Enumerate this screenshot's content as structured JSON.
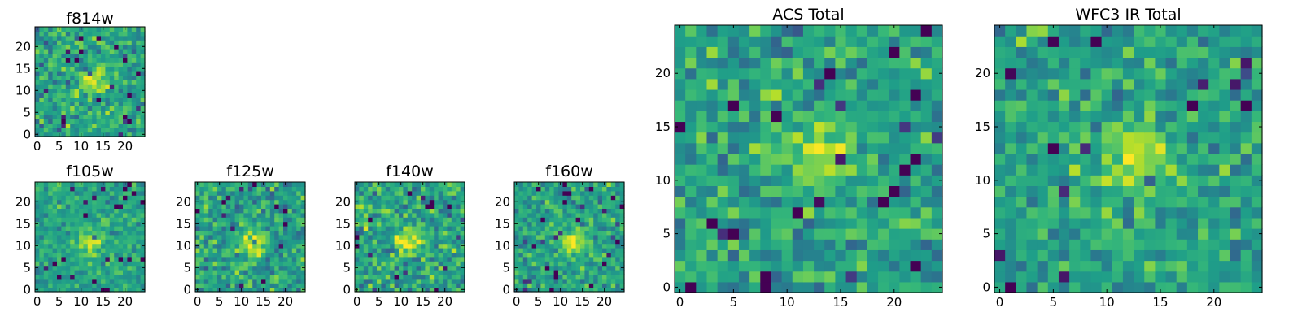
{
  "colormap": "viridis",
  "chart_data": [
    {
      "type": "heatmap",
      "title": "f814w",
      "size": [
        25,
        25
      ],
      "xticks": [
        "0",
        "5",
        "10",
        "15",
        "20"
      ],
      "yticks": [
        "0",
        "5",
        "10",
        "15",
        "20"
      ],
      "value_range": [
        0,
        1
      ],
      "source_center": [
        13,
        12
      ],
      "noise": 0.2,
      "seed": 11
    },
    {
      "type": "heatmap",
      "title": "f105w",
      "size": [
        25,
        25
      ],
      "xticks": [
        "0",
        "5",
        "10",
        "15",
        "20"
      ],
      "yticks": [
        "0",
        "5",
        "10",
        "15",
        "20"
      ],
      "value_range": [
        0,
        1
      ],
      "source_center": [
        12,
        11
      ],
      "noise": 0.15,
      "seed": 23
    },
    {
      "type": "heatmap",
      "title": "f125w",
      "size": [
        25,
        25
      ],
      "xticks": [
        "0",
        "5",
        "10",
        "15",
        "20"
      ],
      "yticks": [
        "0",
        "5",
        "10",
        "15",
        "20"
      ],
      "value_range": [
        0,
        1
      ],
      "source_center": [
        13,
        11
      ],
      "noise": 0.22,
      "seed": 37
    },
    {
      "type": "heatmap",
      "title": "f140w",
      "size": [
        25,
        25
      ],
      "xticks": [
        "0",
        "5",
        "10",
        "15",
        "20"
      ],
      "yticks": [
        "0",
        "5",
        "10",
        "15",
        "20"
      ],
      "value_range": [
        0,
        1
      ],
      "source_center": [
        12,
        11
      ],
      "noise": 0.22,
      "seed": 41
    },
    {
      "type": "heatmap",
      "title": "f160w",
      "size": [
        25,
        25
      ],
      "xticks": [
        "0",
        "5",
        "10",
        "15",
        "20"
      ],
      "yticks": [
        "0",
        "5",
        "10",
        "15",
        "20"
      ],
      "value_range": [
        0,
        1
      ],
      "source_center": [
        13,
        11
      ],
      "noise": 0.18,
      "seed": 53
    },
    {
      "type": "heatmap",
      "title": "ACS Total",
      "size": [
        25,
        25
      ],
      "xticks": [
        "0",
        "5",
        "10",
        "15",
        "20"
      ],
      "yticks": [
        "0",
        "5",
        "10",
        "15",
        "20"
      ],
      "value_range": [
        0,
        1
      ],
      "source_center": [
        13,
        12
      ],
      "noise": 0.2,
      "seed": 67
    },
    {
      "type": "heatmap",
      "title": "WFC3 IR Total",
      "size": [
        25,
        25
      ],
      "xticks": [
        "0",
        "5",
        "10",
        "15",
        "20"
      ],
      "yticks": [
        "0",
        "5",
        "10",
        "15",
        "20"
      ],
      "value_range": [
        0,
        1
      ],
      "source_center": [
        13,
        12
      ],
      "noise": 0.18,
      "seed": 79
    }
  ]
}
